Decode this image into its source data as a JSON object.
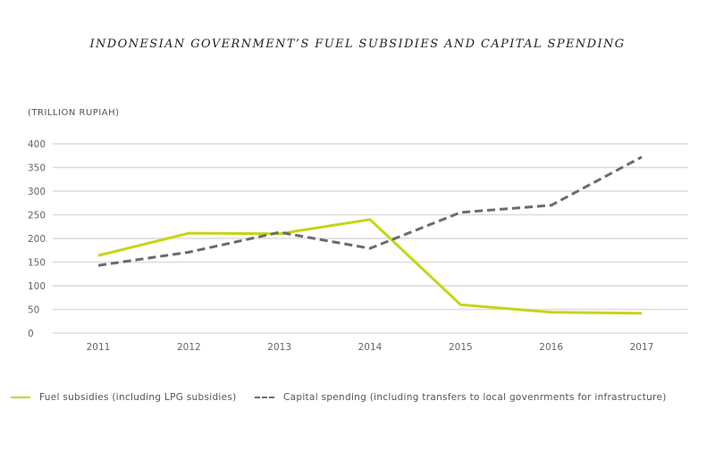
{
  "chart_data": {
    "type": "line",
    "title": "INDONESIAN GOVERNMENT’S FUEL SUBSIDIES AND CAPITAL SPENDING",
    "ylabel": "(TRILLION RUPIAH)",
    "xlabel": "",
    "categories": [
      "2011",
      "2012",
      "2013",
      "2014",
      "2015",
      "2016",
      "2017"
    ],
    "ylim": [
      0,
      400
    ],
    "yticks": [
      0,
      50,
      100,
      150,
      200,
      250,
      300,
      350,
      400
    ],
    "grid": true,
    "legend_position": "bottom",
    "series": [
      {
        "name": "Fuel subsidies (including LPG subsidies)",
        "color": "#c5d515",
        "style": "solid",
        "values": [
          164,
          211,
          210,
          240,
          60,
          44,
          42
        ]
      },
      {
        "name": "Capital spending (including transfers to local govenrments for infrastructure)",
        "color": "#6b6b6b",
        "style": "dashed",
        "values": [
          143,
          171,
          213,
          179,
          255,
          270,
          372
        ]
      }
    ]
  }
}
